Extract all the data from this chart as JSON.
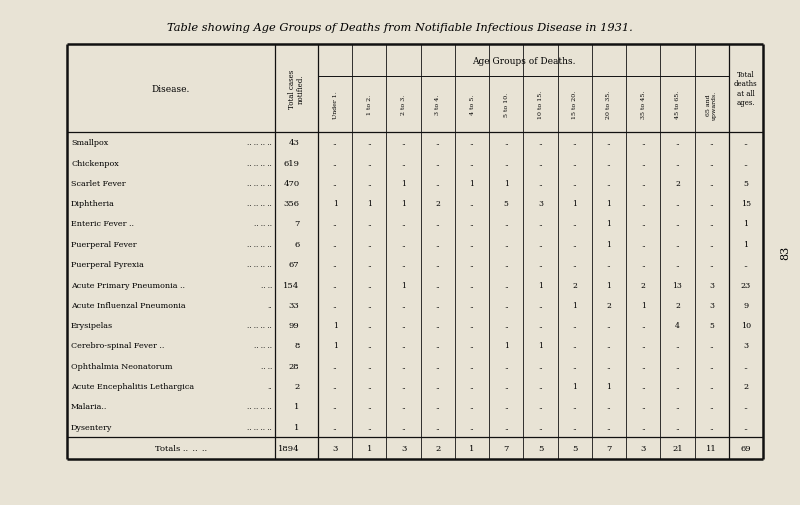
{
  "title": "Table showing Age Groups of Deaths from Notifiable Infectious Disease in 1931.",
  "bg_color": "#e8e3d5",
  "diseases": [
    "Smallpox",
    "Chickenpox",
    "Scarlet Fever",
    "Diphtheria",
    "Enteric Fever ..",
    "Puerperal Fever",
    "Puerperal Pyrexia",
    "Acute Primary Pneumonia ..",
    "Acute Influenzal Pneumonia",
    "Erysipelas",
    "Cerebro-spinal Fever ..",
    "Ophthalmia Neonatorum",
    "Acute Encephalitis Lethargica",
    "Malaria..",
    "Dysentery"
  ],
  "disease_dots": [
    ".. .. .. ..",
    ".. .. .. ..",
    ".. .. .. ..",
    ".. .. .. ..",
    ".. .. ..",
    ".. .. .. ..",
    ".. .. .. ..",
    ".. ..",
    "..",
    ".. .. .. ..",
    ".. .. ..",
    ".. ..",
    "..",
    ".. .. .. ..",
    ".. .. .. .."
  ],
  "total_cases": [
    "43",
    "619",
    "470",
    "356",
    "7",
    "6",
    "67",
    "154",
    "33",
    "99",
    "8",
    "28",
    "2",
    "1",
    "1"
  ],
  "age_groups": [
    "Under 1.",
    "1 to 2.",
    "2 to 3.",
    "3 to 4.",
    "4 to 5.",
    "5 to 10.",
    "10 to 15.",
    "15 to 20.",
    "20 to 35.",
    "35 to 45.",
    "45 to 65.",
    "65 and\nupwards."
  ],
  "age_groups_short": [
    "Under 1.",
    "1 to 2.",
    "2 to 3.",
    "3 to 4.",
    "4 to 5.",
    "5 to 10.",
    "10 to 15.",
    "15 to 20.",
    "20 to 35.",
    "35 to 45.",
    "45 to 65.",
    "65 and upwards."
  ],
  "data": [
    [
      "..",
      "..",
      "..",
      "..",
      "..",
      "..",
      "..",
      "..",
      "..",
      "..",
      "..",
      ".."
    ],
    [
      "..",
      "..",
      "..",
      "..",
      "..",
      "..",
      "..",
      "..",
      "..",
      "..",
      "..",
      ".."
    ],
    [
      "..",
      "..",
      "1",
      "..",
      "1",
      "1",
      "..",
      "..",
      "..",
      "..",
      "2",
      ".."
    ],
    [
      "1",
      "1",
      "1",
      "2",
      "..",
      "5",
      "3",
      "1",
      "1",
      "..",
      "..",
      ".."
    ],
    [
      "..",
      "..",
      "..",
      "..",
      "..",
      "..",
      "..",
      "..",
      "1",
      "..",
      "..",
      ".."
    ],
    [
      "..",
      "..",
      "..",
      "..",
      "..",
      "..",
      "..",
      "..",
      "1",
      "..",
      "..",
      ".."
    ],
    [
      "..",
      "..",
      "..",
      "..",
      "..",
      "..",
      "..",
      "..",
      "..",
      "..",
      "..",
      ".."
    ],
    [
      "..",
      "..",
      "1",
      "..",
      "..",
      "..",
      "1",
      "2",
      "1",
      "2",
      "13",
      "3"
    ],
    [
      "..",
      "..",
      "..",
      "..",
      "..",
      "..",
      "..",
      "1",
      "2",
      "1",
      "2",
      "3"
    ],
    [
      "1",
      "..",
      "..",
      "..",
      "..",
      "..",
      "..",
      "..",
      "..",
      "..",
      "4",
      "5"
    ],
    [
      "1",
      "..",
      "..",
      "..",
      "..",
      "1",
      "1",
      "..",
      "..",
      "..",
      "..",
      ".."
    ],
    [
      "..",
      "..",
      "..",
      "..",
      "..",
      "..",
      "..",
      "..",
      "..",
      "..",
      "..",
      ".."
    ],
    [
      "..",
      "..",
      "..",
      "..",
      "..",
      "..",
      "..",
      "1",
      "1",
      "..",
      "..",
      ".."
    ],
    [
      "..",
      "..",
      "..",
      "..",
      "..",
      "..",
      "..",
      "..",
      "..",
      "..",
      "..",
      ".."
    ],
    [
      "..",
      "..",
      "..",
      "..",
      "..",
      "..",
      "..",
      "..",
      "..",
      "..",
      "..",
      ".."
    ]
  ],
  "total_deaths": [
    "..",
    "..",
    "5",
    "15",
    "1",
    "1",
    "..",
    "23",
    "9",
    "10",
    "3",
    "..",
    "2",
    "..",
    ".."
  ],
  "totals_row": [
    "3",
    "1",
    "3",
    "2",
    "1",
    "7",
    "5",
    "5",
    "7",
    "3",
    "21",
    "11"
  ],
  "totals_cases": "1894",
  "totals_deaths": "69",
  "page_number": "83"
}
